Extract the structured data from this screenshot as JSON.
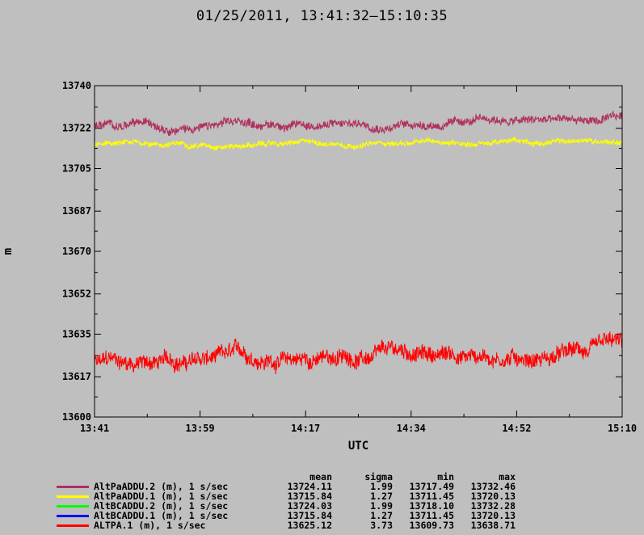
{
  "title": "01/25/2011, 13:41:32–15:10:35",
  "chart_data": {
    "type": "line",
    "xlabel": "UTC",
    "ylabel": "m",
    "x_range": [
      "13:41:32",
      "15:10:35"
    ],
    "xticks": [
      "13:41",
      "13:59",
      "14:17",
      "14:34",
      "14:52",
      "15:10"
    ],
    "ylim": [
      13600,
      13740
    ],
    "yticks": [
      13600,
      13617,
      13635,
      13652,
      13670,
      13687,
      13705,
      13722,
      13740
    ],
    "grid": false,
    "legend_placement": "bottom",
    "stats_headers": {
      "mean": "mean",
      "sigma": "sigma",
      "min": "min",
      "max": "max"
    },
    "series": [
      {
        "name": "AltPaADDU.2 (m), 1 s/sec",
        "color": "#b03060",
        "mean": "13724.11",
        "sigma": "1.99",
        "min": "13717.49",
        "max": "13732.46",
        "visible": true
      },
      {
        "name": "AltPaADDU.1 (m), 1 s/sec",
        "color": "#ffff00",
        "mean": "13715.84",
        "sigma": "1.27",
        "min": "13711.45",
        "max": "13720.13",
        "visible": true
      },
      {
        "name": "AltBCADDU.2 (m), 1 s/sec",
        "color": "#00ff00",
        "mean": "13724.03",
        "sigma": "1.99",
        "min": "13718.10",
        "max": "13732.28",
        "visible": false
      },
      {
        "name": "AltBCADDU.1 (m), 1 s/sec",
        "color": "#0000ff",
        "mean": "13715.84",
        "sigma": "1.27",
        "min": "13711.45",
        "max": "13720.13",
        "visible": false
      },
      {
        "name": "ALTPA.1 (m), 1 s/sec",
        "color": "#ff0000",
        "mean": "13625.12",
        "sigma": "3.73",
        "min": "13609.73",
        "max": "13638.71",
        "visible": true
      }
    ]
  }
}
